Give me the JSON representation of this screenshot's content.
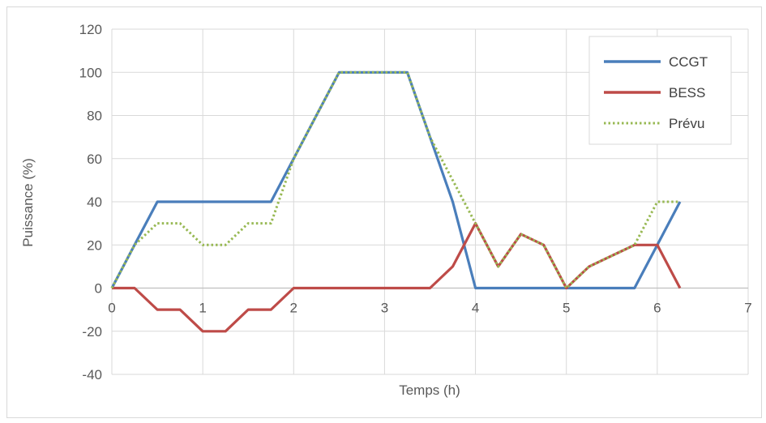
{
  "chart_data": {
    "type": "line",
    "title": "",
    "xlabel": "Temps (h)",
    "ylabel": "Puissance (%)",
    "xlim": [
      0,
      7
    ],
    "ylim": [
      -40,
      120
    ],
    "xticks": [
      0,
      1,
      2,
      3,
      4,
      5,
      6,
      7
    ],
    "yticks": [
      -40,
      -20,
      0,
      20,
      40,
      60,
      80,
      100,
      120
    ],
    "grid": true,
    "legend_position": "top-right",
    "series": [
      {
        "name": "CCGT",
        "color": "#4a7ebb",
        "style": "solid",
        "x": [
          0,
          0.25,
          0.5,
          0.75,
          1,
          1.25,
          1.5,
          1.75,
          2,
          2.25,
          2.5,
          2.75,
          3,
          3.25,
          3.5,
          3.75,
          4,
          4.25,
          4.5,
          4.75,
          5,
          5.25,
          5.5,
          5.75,
          6,
          6.25
        ],
        "y": [
          0,
          20,
          40,
          40,
          40,
          40,
          40,
          40,
          60,
          80,
          100,
          100,
          100,
          100,
          70,
          40,
          0,
          0,
          0,
          0,
          0,
          0,
          0,
          0,
          20,
          40
        ]
      },
      {
        "name": "BESS",
        "color": "#be4b48",
        "style": "solid",
        "x": [
          0,
          0.25,
          0.5,
          0.75,
          1,
          1.25,
          1.5,
          1.75,
          2,
          2.25,
          2.5,
          2.75,
          3,
          3.25,
          3.5,
          3.75,
          4,
          4.25,
          4.5,
          4.75,
          5,
          5.25,
          5.5,
          5.75,
          6,
          6.25
        ],
        "y": [
          0,
          0,
          -10,
          -10,
          -20,
          -20,
          -10,
          -10,
          0,
          0,
          0,
          0,
          0,
          0,
          0,
          10,
          30,
          10,
          25,
          20,
          0,
          10,
          15,
          20,
          20,
          0
        ]
      },
      {
        "name": "Prévu",
        "color": "#98b954",
        "style": "dotted",
        "x": [
          0,
          0.25,
          0.5,
          0.75,
          1,
          1.25,
          1.5,
          1.75,
          2,
          2.25,
          2.5,
          2.75,
          3,
          3.25,
          3.5,
          3.75,
          4,
          4.25,
          4.5,
          4.75,
          5,
          5.25,
          5.5,
          5.75,
          6,
          6.25
        ],
        "y": [
          0,
          20,
          30,
          30,
          20,
          20,
          30,
          30,
          60,
          80,
          100,
          100,
          100,
          100,
          70,
          50,
          30,
          10,
          25,
          20,
          0,
          10,
          15,
          20,
          40,
          40
        ]
      }
    ]
  }
}
